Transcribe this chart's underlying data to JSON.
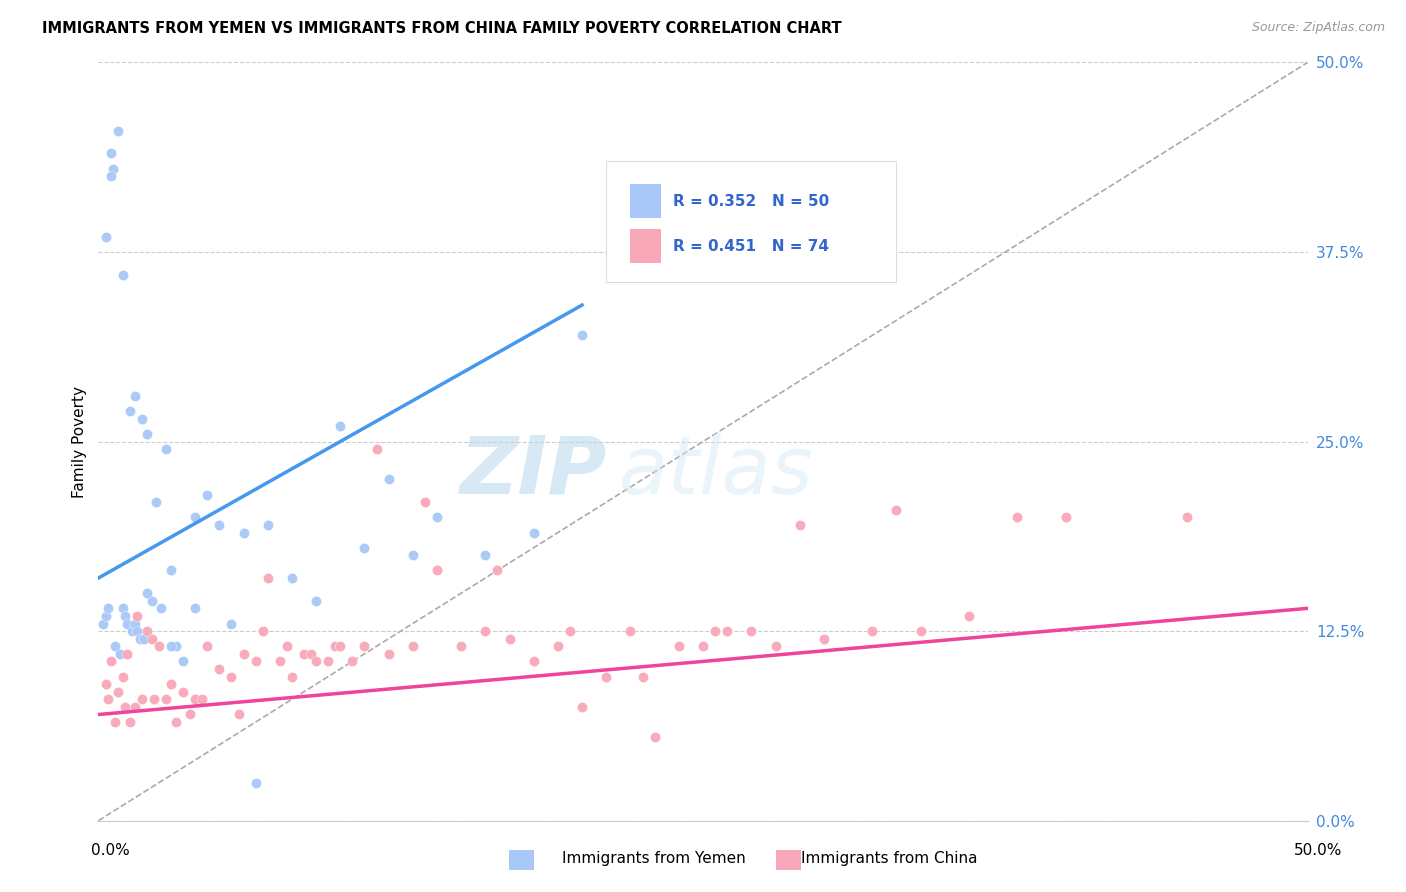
{
  "title": "IMMIGRANTS FROM YEMEN VS IMMIGRANTS FROM CHINA FAMILY POVERTY CORRELATION CHART",
  "source": "Source: ZipAtlas.com",
  "ylabel": "Family Poverty",
  "ytick_values": [
    0.0,
    12.5,
    25.0,
    37.5,
    50.0
  ],
  "xlim": [
    0.0,
    50.0
  ],
  "ylim": [
    0.0,
    50.0
  ],
  "color_yemen": "#a8c8f8",
  "color_china": "#f8a8b8",
  "color_line_yemen": "#4499ee",
  "color_line_china": "#ee4499",
  "color_diag": "#aaaaaa",
  "watermark_zip": "ZIP",
  "watermark_atlas": "atlas",
  "yemen_scatter_x": [
    0.2,
    0.3,
    0.4,
    0.5,
    0.6,
    0.7,
    0.8,
    0.9,
    1.0,
    1.1,
    1.2,
    1.3,
    1.4,
    1.5,
    1.6,
    1.7,
    1.8,
    1.9,
    2.0,
    2.2,
    2.4,
    2.6,
    2.8,
    3.0,
    3.2,
    3.5,
    4.0,
    4.5,
    5.0,
    5.5,
    6.0,
    7.0,
    8.0,
    9.0,
    10.0,
    11.0,
    12.0,
    13.0,
    14.0,
    16.0,
    18.0,
    20.0,
    0.3,
    0.5,
    1.0,
    1.5,
    2.0,
    3.0,
    4.0,
    6.5
  ],
  "yemen_scatter_y": [
    13.0,
    13.5,
    14.0,
    44.0,
    43.0,
    11.5,
    45.5,
    11.0,
    14.0,
    13.5,
    13.0,
    27.0,
    12.5,
    13.0,
    12.5,
    12.0,
    26.5,
    12.0,
    25.5,
    14.5,
    21.0,
    14.0,
    24.5,
    16.5,
    11.5,
    10.5,
    14.0,
    21.5,
    19.5,
    13.0,
    19.0,
    19.5,
    16.0,
    14.5,
    26.0,
    18.0,
    22.5,
    17.5,
    20.0,
    17.5,
    19.0,
    32.0,
    38.5,
    42.5,
    36.0,
    28.0,
    15.0,
    11.5,
    20.0,
    2.5
  ],
  "china_scatter_x": [
    0.3,
    0.5,
    0.7,
    0.8,
    1.0,
    1.2,
    1.3,
    1.5,
    1.6,
    1.8,
    2.0,
    2.2,
    2.3,
    2.5,
    2.8,
    3.0,
    3.2,
    3.5,
    3.8,
    4.0,
    4.3,
    4.5,
    5.0,
    5.5,
    5.8,
    6.0,
    6.5,
    6.8,
    7.0,
    7.5,
    7.8,
    8.0,
    8.5,
    8.8,
    9.0,
    9.5,
    9.8,
    10.0,
    10.5,
    11.0,
    11.5,
    12.0,
    13.0,
    13.5,
    14.0,
    15.0,
    16.0,
    16.5,
    17.0,
    18.0,
    19.0,
    19.5,
    20.0,
    21.0,
    22.0,
    22.5,
    23.0,
    24.0,
    25.0,
    25.5,
    26.0,
    27.0,
    28.0,
    29.0,
    30.0,
    32.0,
    33.0,
    34.0,
    36.0,
    38.0,
    40.0,
    45.0,
    0.4,
    1.1
  ],
  "china_scatter_y": [
    9.0,
    10.5,
    6.5,
    8.5,
    9.5,
    11.0,
    6.5,
    7.5,
    13.5,
    8.0,
    12.5,
    12.0,
    8.0,
    11.5,
    8.0,
    9.0,
    6.5,
    8.5,
    7.0,
    8.0,
    8.0,
    11.5,
    10.0,
    9.5,
    7.0,
    11.0,
    10.5,
    12.5,
    16.0,
    10.5,
    11.5,
    9.5,
    11.0,
    11.0,
    10.5,
    10.5,
    11.5,
    11.5,
    10.5,
    11.5,
    24.5,
    11.0,
    11.5,
    21.0,
    16.5,
    11.5,
    12.5,
    16.5,
    12.0,
    10.5,
    11.5,
    12.5,
    7.5,
    9.5,
    12.5,
    9.5,
    5.5,
    11.5,
    11.5,
    12.5,
    12.5,
    12.5,
    11.5,
    19.5,
    12.0,
    12.5,
    20.5,
    12.5,
    13.5,
    20.0,
    20.0,
    20.0,
    8.0,
    7.5
  ]
}
